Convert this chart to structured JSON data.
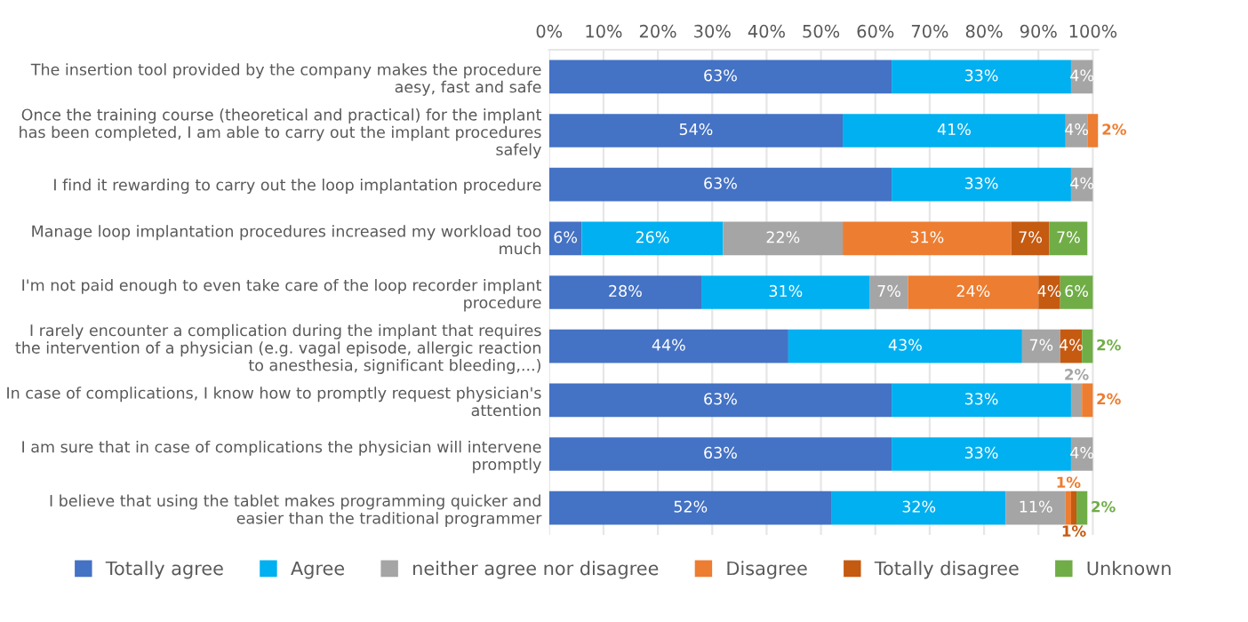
{
  "chart_data": {
    "type": "bar",
    "orientation": "horizontal",
    "stacked": true,
    "categories": [
      "The insertion tool provided by the company makes the procedure aesy, fast and safe",
      "Once the training course (theoretical and practical) for the implant has been completed, I am able to carry out the implant procedures safely",
      "I find it rewarding to carry out the loop implantation procedure",
      "Manage loop implantation procedures increased my workload too much",
      "I'm not paid enough to even take care of the loop recorder implant procedure",
      "I rarely encounter a complication during the implant that requires the intervention of a physician (e.g. vagal episode, allergic reaction to anesthesia, significant bleeding,...)",
      "In case of complications, I know how to promptly request physician's attention",
      "I am sure that in case of complications the physician will intervene promptly",
      "I believe that using the tablet makes programming quicker and easier than the traditional programmer"
    ],
    "series": [
      {
        "name": "Totally agree",
        "color": "#4472c4",
        "values": [
          63,
          54,
          63,
          6,
          28,
          44,
          63,
          63,
          52
        ],
        "value_labels": [
          "63%",
          "54%",
          "63%",
          "6%",
          "28%",
          "44%",
          "63%",
          "63%",
          "52%"
        ]
      },
      {
        "name": "Agree",
        "color": "#00b0f0",
        "values": [
          33,
          41,
          33,
          26,
          31,
          43,
          33,
          33,
          32
        ],
        "value_labels": [
          "33%",
          "41%",
          "33%",
          "26%",
          "31%",
          "43%",
          "33%",
          "33%",
          "32%"
        ]
      },
      {
        "name": "neither agree nor disagree",
        "color": "#a5a5a5",
        "values": [
          4,
          4,
          4,
          22,
          7,
          7,
          2,
          4,
          11
        ],
        "value_labels": [
          "4%",
          "4%",
          "4%",
          "22%",
          "7%",
          "7%",
          "2%",
          "4%",
          "11%"
        ]
      },
      {
        "name": "Disagree",
        "color": "#ed7d31",
        "values": [
          null,
          2,
          null,
          31,
          24,
          null,
          2,
          null,
          1
        ],
        "value_labels": [
          null,
          "2%",
          null,
          "31%",
          "24%",
          null,
          "2%",
          null,
          "1%"
        ]
      },
      {
        "name": "Totally disagree",
        "color": "#c55a11",
        "values": [
          null,
          null,
          null,
          7,
          4,
          4,
          null,
          null,
          1
        ],
        "value_labels": [
          null,
          null,
          null,
          "7%",
          "4%",
          "4%",
          null,
          null,
          "1%"
        ]
      },
      {
        "name": "Unknown",
        "color": "#70ad47",
        "values": [
          null,
          null,
          null,
          7,
          6,
          2,
          null,
          null,
          2
        ],
        "value_labels": [
          null,
          null,
          null,
          "7%",
          "6%",
          "2%",
          null,
          null,
          "2%"
        ]
      }
    ],
    "xlim": [
      0,
      101
    ],
    "xticks": [
      {
        "value": 0,
        "label": "0%"
      },
      {
        "value": 10,
        "label": "10%"
      },
      {
        "value": 20,
        "label": "20%"
      },
      {
        "value": 30,
        "label": "30%"
      },
      {
        "value": 40,
        "label": "40%"
      },
      {
        "value": 50,
        "label": "50%"
      },
      {
        "value": 60,
        "label": "60%"
      },
      {
        "value": 70,
        "label": "70%"
      },
      {
        "value": 80,
        "label": "80%"
      },
      {
        "value": 90,
        "label": "90%"
      },
      {
        "value": 100,
        "label": "100%"
      }
    ],
    "grid": "x",
    "legend": "bottom"
  }
}
